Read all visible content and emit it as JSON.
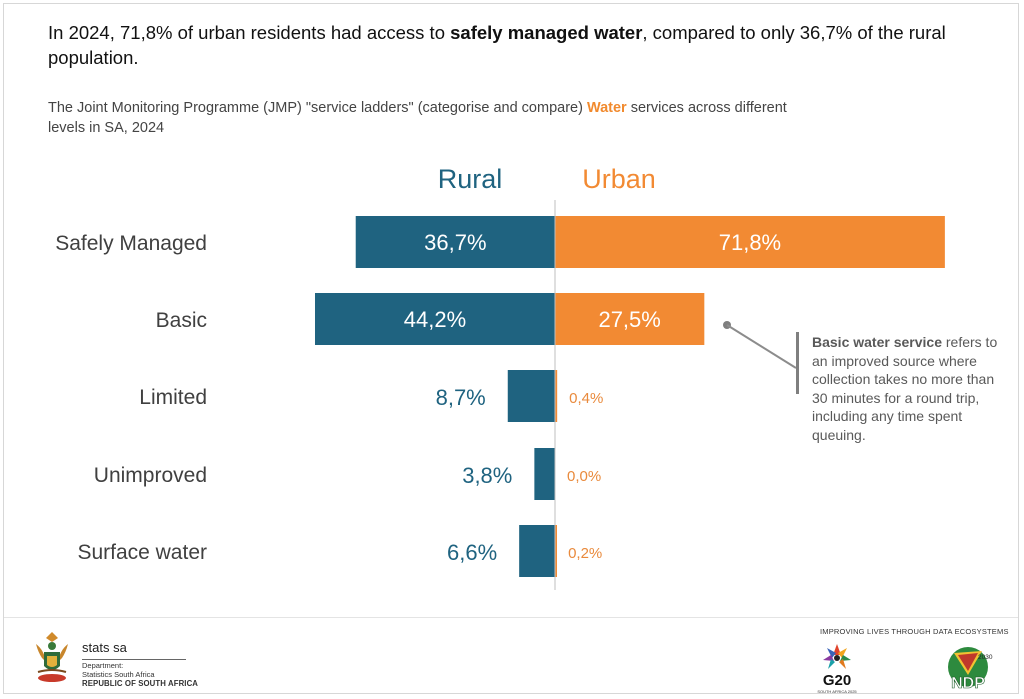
{
  "headline": {
    "pre": "In 2024, 71,8% of urban residents had access to ",
    "bold": "safely managed water",
    "post": ", compared to only 36,7% of the rural population."
  },
  "subtitle": {
    "pre": "The Joint Monitoring Programme (JMP) \"service ladders\" (categorise and compare) ",
    "highlight": "Water",
    "post": " services across different levels in SA,  2024"
  },
  "colors": {
    "rural": "#1f6380",
    "urban": "#f28a33",
    "urban_label": "#e98a3c",
    "axis": "#bfbfbf"
  },
  "chart_data": {
    "type": "bar",
    "orientation": "horizontal-diverging",
    "categories": [
      "Safely Managed",
      "Basic",
      "Limited",
      "Unimproved",
      "Surface water"
    ],
    "series": [
      {
        "name": "Rural",
        "values": [
          36.7,
          44.2,
          8.7,
          3.8,
          6.6
        ],
        "labels": [
          "36,7%",
          "44,2%",
          "8,7%",
          "3,8%",
          "6,6%"
        ]
      },
      {
        "name": "Urban",
        "values": [
          71.8,
          27.5,
          0.4,
          0.0,
          0.2
        ],
        "labels": [
          "71,8%",
          "27,5%",
          "0,4%",
          "0,0%",
          "0,2%"
        ]
      }
    ],
    "legend": "top-center"
  },
  "note": {
    "bold": "Basic water service",
    "rest": " refers to an improved source where collection takes no more than 30 minutes for a round trip, including any time spent queuing."
  },
  "footer": {
    "brand": "stats sa",
    "dept_line1": "Department:",
    "dept_line2": "Statistics South Africa",
    "dept_line3": "REPUBLIC OF SOUTH AFRICA",
    "tagline": "IMPROVING LIVES THROUGH DATA ECOSYSTEMS",
    "g20_text": "G20",
    "g20_sub": "SOUTH AFRICA 2025",
    "ndp_text": "NDP",
    "ndp_year": "2030"
  }
}
